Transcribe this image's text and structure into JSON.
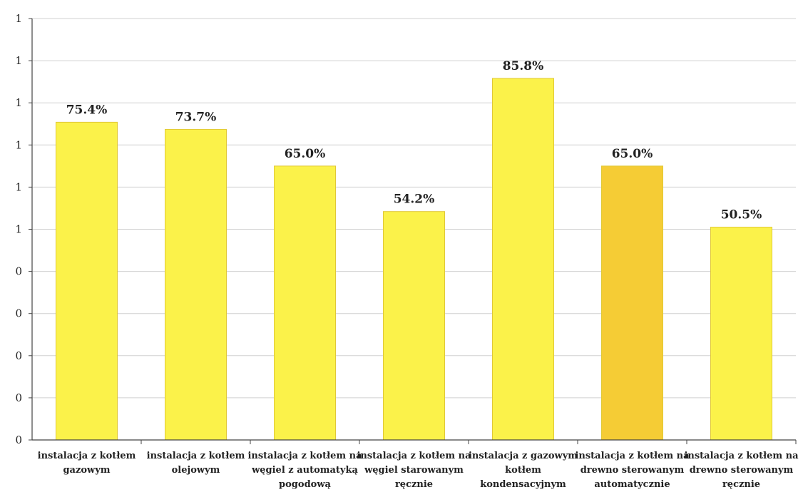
{
  "chart_data": {
    "type": "bar",
    "categories": [
      [
        "instalacja z kotłem",
        "gazowym"
      ],
      [
        "instalacja z kotłem",
        "olejowym"
      ],
      [
        "instalacja z kotłem na",
        "węgiel z automatyką",
        "pogodową"
      ],
      [
        "instalacja z kotłem na",
        "węgiel starowanym",
        "ręcznie"
      ],
      [
        "instalacja z gazowym",
        "kotłem",
        "kondensacyjnym"
      ],
      [
        "instalacja z kotłem na",
        "drewno sterowanym",
        "automatycznie"
      ],
      [
        "instalacja z kotłem na",
        "drewno sterowanym",
        "ręcznie"
      ]
    ],
    "values": [
      0.754,
      0.737,
      0.65,
      0.542,
      0.858,
      0.65,
      0.505
    ],
    "data_labels": [
      "75.4%",
      "73.7%",
      "65.0%",
      "54.2%",
      "85.8%",
      "65.0%",
      "50.5%"
    ],
    "y_tick_labels": [
      "0",
      "0",
      "0",
      "0",
      "0",
      "1",
      "1",
      "1",
      "1",
      "1",
      "1"
    ],
    "ylim": [
      0,
      1
    ],
    "grid": true,
    "title": "",
    "xlabel": "",
    "ylabel": "",
    "colors": {
      "bar": "#fbf24a",
      "bar_highlight": "#f5cc35",
      "bar_edge": "#e0c836",
      "grid": "#d0d0d0",
      "axis": "#444444"
    },
    "highlight_index": 5
  }
}
